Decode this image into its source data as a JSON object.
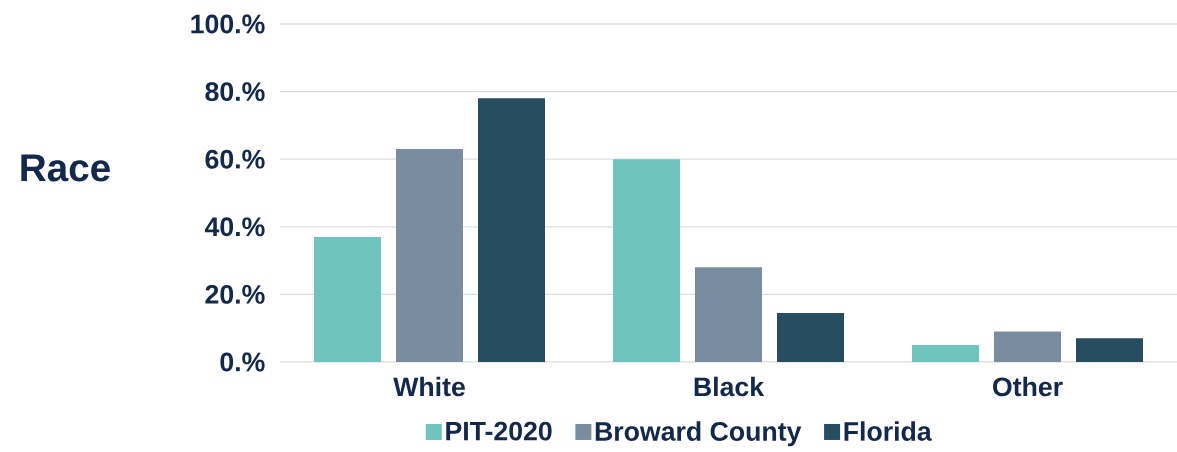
{
  "chart_data": {
    "type": "bar",
    "title": "Race",
    "categories": [
      "White",
      "Black",
      "Other"
    ],
    "series": [
      {
        "name": "PIT-2020",
        "color": "#70c4bf",
        "values": [
          37,
          60,
          5
        ]
      },
      {
        "name": "Broward County",
        "color": "#7a8ca0",
        "values": [
          63,
          28,
          9
        ]
      },
      {
        "name": "Florida",
        "color": "#264d60",
        "values": [
          78,
          14.5,
          7
        ]
      }
    ],
    "ylim": [
      0,
      100
    ],
    "yticks": [
      {
        "value": 0,
        "label": "0.%"
      },
      {
        "value": 20,
        "label": "20.%"
      },
      {
        "value": 40,
        "label": "40.%"
      },
      {
        "value": 60,
        "label": "60.%"
      },
      {
        "value": 80,
        "label": "80.%"
      },
      {
        "value": 100,
        "label": "100.%"
      }
    ],
    "grid": "y",
    "legend": "bottom"
  }
}
